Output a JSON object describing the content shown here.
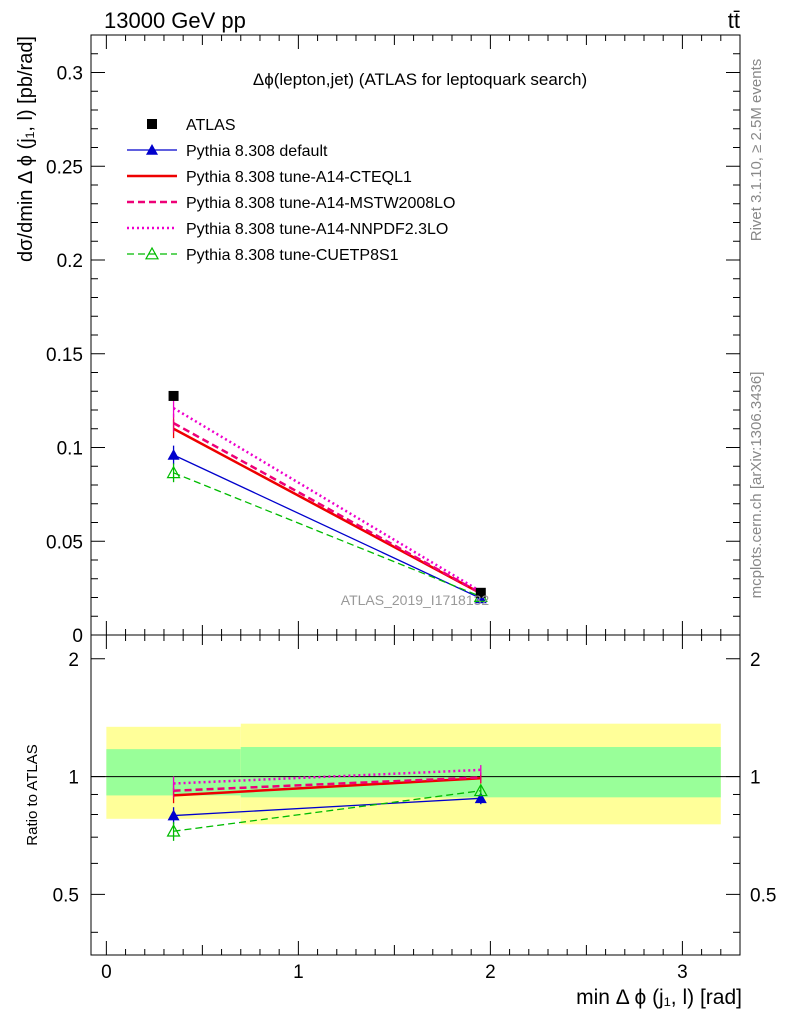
{
  "header": {
    "energy_label": "13000 GeV pp",
    "process_label": "tt̄"
  },
  "side_labels": {
    "rivet": "Rivet 3.1.10, ≥ 2.5M events",
    "mcplots": "mcplots.cern.ch [arXiv:1306.3436]"
  },
  "chart_data": {
    "type": "line",
    "title": "Δϕ(lepton,jet) (ATLAS for leptoquark search)",
    "watermark": "ATLAS_2019_I1718132",
    "xlabel": "min Δ ϕ (j₁, l) [rad]",
    "ylabel": "dσ/dmin Δ ϕ (j₁, l) [pb/rad]",
    "ratio_ylabel": "Ratio to ATLAS",
    "xlim": [
      -0.08,
      3.3
    ],
    "ylim": [
      0,
      0.32
    ],
    "ratio_ylim": [
      0.35,
      2.3
    ],
    "x_ticks": [
      "0",
      "1",
      "2",
      "3"
    ],
    "y_ticks": [
      "0",
      "0.05",
      "0.1",
      "0.15",
      "0.2",
      "0.25",
      "0.3"
    ],
    "ratio_ticks": [
      "0.5",
      "1",
      "2"
    ],
    "x": [
      0.35,
      1.95
    ],
    "data": {
      "name": "ATLAS",
      "color": "#000000",
      "values": [
        0.1275,
        0.0225
      ]
    },
    "series": [
      {
        "name": "Pythia 8.308 default",
        "color": "#0000cc",
        "style": "solid",
        "width": 1.3,
        "marker": "triangle-filled",
        "values": [
          0.096,
          0.0195
        ],
        "errors": [
          0.005,
          0.0007
        ],
        "ratio": [
          0.795,
          0.88
        ],
        "ratio_errors": [
          0.04,
          0.03
        ]
      },
      {
        "name": "Pythia 8.308 tune-A14-CTEQL1",
        "color": "#ee0000",
        "style": "solid",
        "width": 2.5,
        "marker": "none",
        "values": [
          0.11,
          0.0222
        ],
        "errors": [
          0.005,
          0.0007
        ],
        "ratio": [
          0.895,
          0.99
        ],
        "ratio_errors": [
          0.04,
          0.03
        ]
      },
      {
        "name": "Pythia 8.308 tune-A14-MSTW2008LO",
        "color": "#ee0077",
        "style": "dashed",
        "width": 2.5,
        "marker": "none",
        "values": [
          0.113,
          0.0223
        ],
        "errors": [
          0.005,
          0.0007
        ],
        "ratio": [
          0.92,
          0.995
        ],
        "ratio_errors": [
          0.04,
          0.03
        ]
      },
      {
        "name": "Pythia 8.308 tune-A14-NNPDF2.3LO",
        "color": "#ee00cc",
        "style": "dotted",
        "width": 2.5,
        "marker": "none",
        "values": [
          0.121,
          0.0232
        ],
        "errors": [
          0.005,
          0.0007
        ],
        "ratio": [
          0.96,
          1.04
        ],
        "ratio_errors": [
          0.04,
          0.03
        ]
      },
      {
        "name": "Pythia 8.308 tune-CUETP8S1",
        "color": "#00bb00",
        "style": "dashed",
        "width": 1.3,
        "marker": "triangle-open",
        "values": [
          0.0865,
          0.0205
        ],
        "errors": [
          0.005,
          0.0007
        ],
        "ratio": [
          0.725,
          0.92
        ],
        "ratio_errors": [
          0.04,
          0.03
        ]
      }
    ],
    "bands": {
      "outer_color": "#ffff99",
      "inner_color": "#99ff99",
      "bins": [
        {
          "x": [
            0.0,
            0.7
          ],
          "outer": [
            0.78,
            1.34
          ],
          "inner": [
            0.895,
            1.175
          ]
        },
        {
          "x": [
            0.7,
            3.2
          ],
          "outer": [
            0.755,
            1.365
          ],
          "inner": [
            0.885,
            1.19
          ]
        }
      ]
    },
    "legend_position": "top-left"
  }
}
